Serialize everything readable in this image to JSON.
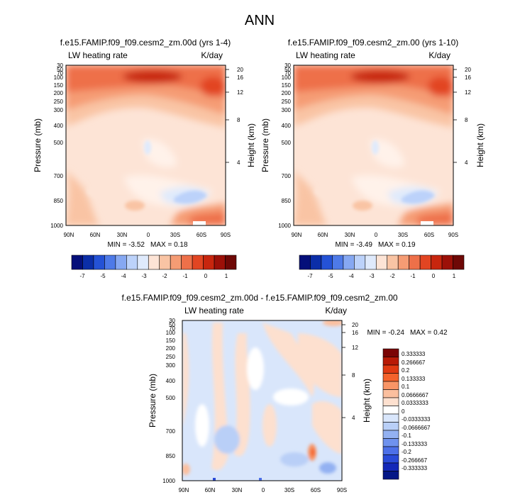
{
  "title": "ANN",
  "chart_data": [
    {
      "type": "heatmap",
      "title": "f.e15.FAMIP.f09_f09.cesm2_zm.00d (yrs 1-4)",
      "left_label": "LW heating rate",
      "right_label": "K/day",
      "ylabel": "Pressure (mb)",
      "y2label": "Height (km)",
      "x_ticks": [
        "90N",
        "60N",
        "30N",
        "0",
        "30S",
        "60S",
        "90S"
      ],
      "y_ticks": [
        "30",
        "50",
        "70",
        "100",
        "150",
        "200",
        "250",
        "300",
        "400",
        "500",
        "700",
        "850",
        "1000"
      ],
      "y2_ticks": [
        "20",
        "16",
        "12",
        "8",
        "4"
      ],
      "min_text": "MIN =  -3.52",
      "max_text": "MAX =  0.18",
      "colorbar_labels": [
        "-7",
        "-5",
        "-4",
        "-3",
        "-2",
        "-1",
        "0",
        "1"
      ]
    },
    {
      "type": "heatmap",
      "title": "f.e15.FAMIP.f09_f09.cesm2_zm.00 (yrs 1-10)",
      "left_label": "LW heating rate",
      "right_label": "K/day",
      "ylabel": "Pressure (mb)",
      "y2label": "Height (km)",
      "x_ticks": [
        "90N",
        "60N",
        "30N",
        "0",
        "30S",
        "60S",
        "90S"
      ],
      "y_ticks": [
        "30",
        "50",
        "70",
        "100",
        "150",
        "200",
        "250",
        "300",
        "400",
        "500",
        "700",
        "850",
        "1000"
      ],
      "y2_ticks": [
        "20",
        "16",
        "12",
        "8",
        "4"
      ],
      "min_text": "MIN =  -3.49",
      "max_text": "MAX =  0.19",
      "colorbar_labels": [
        "-7",
        "-5",
        "-4",
        "-3",
        "-2",
        "-1",
        "0",
        "1"
      ]
    },
    {
      "type": "heatmap",
      "title": "f.e15.FAMIP.f09_f09.cesm2_zm.00d - f.e15.FAMIP.f09_f09.cesm2_zm.00",
      "left_label": "LW heating rate",
      "right_label": "K/day",
      "ylabel": "Pressure (mb)",
      "y2label": "Height (km)",
      "x_ticks": [
        "90N",
        "60N",
        "30N",
        "0",
        "30S",
        "60S",
        "90S"
      ],
      "y_ticks": [
        "30",
        "50",
        "70",
        "100",
        "150",
        "200",
        "250",
        "300",
        "400",
        "500",
        "700",
        "850",
        "1000"
      ],
      "y2_ticks": [
        "20",
        "16",
        "12",
        "8",
        "4"
      ],
      "min_text": "MIN =  -0.24",
      "max_text": "MAX =  0.42",
      "colorbar_labels": [
        "0.333333",
        "0.266667",
        "0.2",
        "0.133333",
        "0.1",
        "0.0666667",
        "0.0333333",
        "0",
        "-0.0333333",
        "-0.0666667",
        "-0.1",
        "-0.133333",
        "-0.2",
        "-0.266667",
        "-0.333333"
      ]
    }
  ],
  "colors": {
    "abs_scale": [
      "#050f7a",
      "#0b2ea8",
      "#2452d6",
      "#4e7ae8",
      "#86a8f2",
      "#bcd2fa",
      "#dfeafc",
      "#fde4d6",
      "#f9c4a4",
      "#f59c74",
      "#ee7049",
      "#e24522",
      "#c8260e",
      "#9c1008",
      "#6e0806"
    ],
    "diff_scale": [
      "#7a0404",
      "#b81a06",
      "#e03a12",
      "#f4632c",
      "#f89566",
      "#fbbf9e",
      "#fde0cf",
      "#ffffff",
      "#d9e6fb",
      "#b9cff7",
      "#93b1f2",
      "#6f92ee",
      "#4d70e8",
      "#2a4bd8",
      "#1328b8",
      "#041786"
    ]
  }
}
